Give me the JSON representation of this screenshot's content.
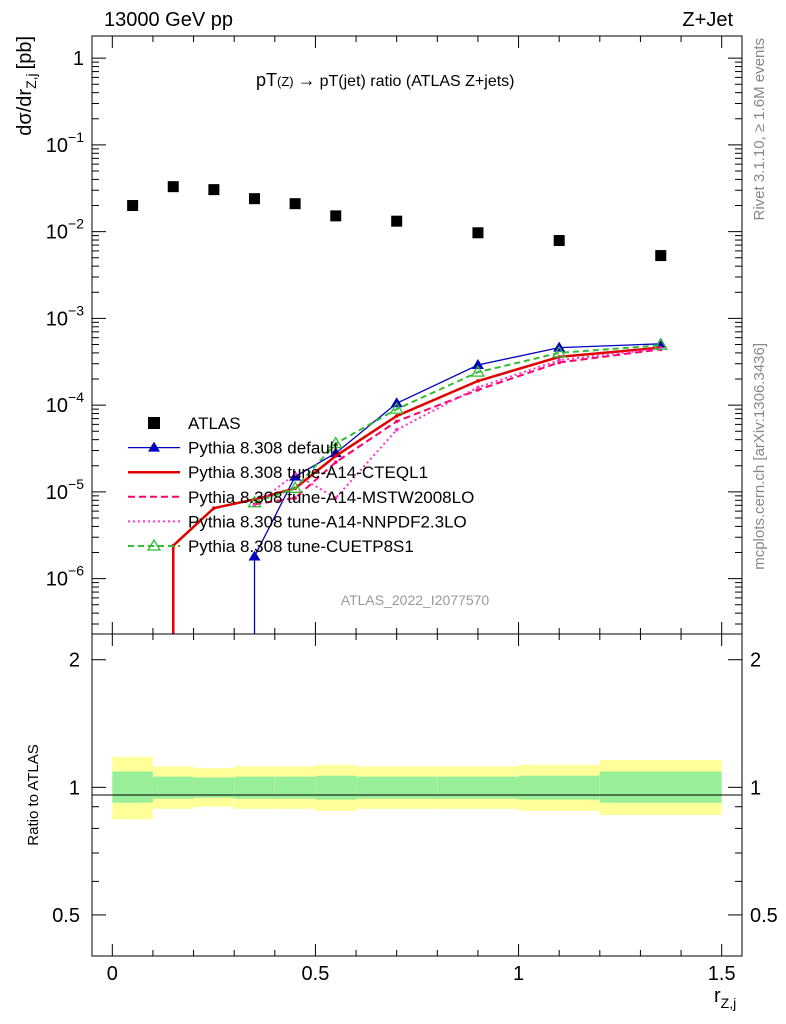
{
  "header": {
    "left": "13000 GeV pp",
    "right": "Z+Jet"
  },
  "side_labels": {
    "rivet": "Rivet 3.1.10, ≥ 1.6M events",
    "mcplots": "mcplots.cern.ch [arXiv:1306.3436]"
  },
  "chart_data": [
    {
      "type": "scatter",
      "title_main": "pT",
      "title_sub": "(Z)",
      "title_arrow": "→",
      "title_rest": "pT(jet) ratio (ATLAS Z+jets)",
      "ylabel_main": "dσ/dr",
      "ylabel_sub": "Z,j",
      "ylabel_unit": "[pb]",
      "watermark": "ATLAS_2022_I2077570",
      "yscale": "log",
      "xlim": [
        -0.05,
        1.55
      ],
      "ylim": [
        2.3e-07,
        1.8
      ],
      "y_tick_labels": [
        {
          "v": 1,
          "base": "1",
          "exp": ""
        },
        {
          "v": 0.1,
          "base": "10",
          "exp": "−1"
        },
        {
          "v": 0.01,
          "base": "10",
          "exp": "−2"
        },
        {
          "v": 0.001,
          "base": "10",
          "exp": "−3"
        },
        {
          "v": 0.0001,
          "base": "10",
          "exp": "−4"
        },
        {
          "v": 1e-05,
          "base": "10",
          "exp": "−5"
        },
        {
          "v": 1e-06,
          "base": "10",
          "exp": "−6"
        }
      ],
      "legend_position": "bottom-left",
      "series": [
        {
          "name": "ATLAS",
          "style": "data",
          "color": "#000000",
          "x": [
            0.05,
            0.15,
            0.25,
            0.35,
            0.45,
            0.55,
            0.7,
            0.9,
            1.1,
            1.35
          ],
          "y": [
            0.02,
            0.033,
            0.0305,
            0.024,
            0.021,
            0.0152,
            0.0132,
            0.0097,
            0.0079,
            0.0053
          ]
        },
        {
          "name": "Pythia 8.308 default",
          "style": "solid",
          "color": "#0000c0",
          "marker": "triangle-filled",
          "x": [
            0.35,
            0.45,
            0.55,
            0.7,
            0.9,
            1.1,
            1.35
          ],
          "y": [
            1.8e-06,
            1.5e-05,
            2.8e-05,
            0.000105,
            0.00029,
            0.00046,
            0.00051
          ]
        },
        {
          "name": "Pythia 8.308 tune-A14-CTEQL1",
          "style": "solid-thick",
          "color": "#e00000",
          "x": [
            0.15,
            0.25,
            0.35,
            0.45,
            0.55,
            0.7,
            0.9,
            1.1,
            1.35
          ],
          "y": [
            2.4e-06,
            6.5e-06,
            8.2e-06,
            1.1e-05,
            2.6e-05,
            7.5e-05,
            0.00019,
            0.00036,
            0.00046
          ]
        },
        {
          "name": "Pythia 8.308 tune-A14-MSTW2008LO",
          "style": "dashed",
          "color": "#ff0066",
          "x": [
            0.35,
            0.45,
            0.55,
            0.7,
            0.9,
            1.1,
            1.35
          ],
          "y": [
            7.2e-06,
            8.5e-06,
            2.2e-05,
            6.5e-05,
            0.00015,
            0.00031,
            0.00044
          ]
        },
        {
          "name": "Pythia 8.308 tune-A14-NNPDF2.3LO",
          "style": "dotted",
          "color": "#ff33cc",
          "x": [
            0.35,
            0.45,
            0.55,
            0.7,
            0.9,
            1.1,
            1.35
          ],
          "y": [
            7e-06,
            1.6e-05,
            8.5e-06,
            5.2e-05,
            0.00016,
            0.00033,
            0.00045
          ]
        },
        {
          "name": "Pythia 8.308 tune-CUETP8S1",
          "style": "dashed-open",
          "color": "#33bb33",
          "marker": "triangle-open",
          "x": [
            0.35,
            0.45,
            0.55,
            0.7,
            0.9,
            1.1,
            1.35
          ],
          "y": [
            7.5e-06,
            1.1e-05,
            3.6e-05,
            9e-05,
            0.00024,
            0.0004,
            0.00049
          ]
        }
      ]
    },
    {
      "type": "area",
      "ylabel": "Ratio to ATLAS",
      "xlabel_main": "r",
      "xlabel_sub": "Z,j",
      "xlim": [
        -0.05,
        1.55
      ],
      "ylim": [
        0.4,
        2.3
      ],
      "y_ticks": [
        "0.5",
        "1",
        "2"
      ],
      "x_ticks": [
        "0",
        "0.5",
        "1",
        "1.5"
      ],
      "bins": [
        {
          "lo": 0.0,
          "hi": 0.1,
          "inner": [
            0.92,
            1.09
          ],
          "outer": [
            0.84,
            1.18
          ]
        },
        {
          "lo": 0.1,
          "hi": 0.2,
          "inner": [
            0.94,
            1.06
          ],
          "outer": [
            0.89,
            1.12
          ]
        },
        {
          "lo": 0.2,
          "hi": 0.3,
          "inner": [
            0.945,
            1.055
          ],
          "outer": [
            0.9,
            1.11
          ]
        },
        {
          "lo": 0.3,
          "hi": 0.4,
          "inner": [
            0.94,
            1.06
          ],
          "outer": [
            0.89,
            1.12
          ]
        },
        {
          "lo": 0.4,
          "hi": 0.5,
          "inner": [
            0.94,
            1.06
          ],
          "outer": [
            0.89,
            1.12
          ]
        },
        {
          "lo": 0.5,
          "hi": 0.6,
          "inner": [
            0.935,
            1.065
          ],
          "outer": [
            0.88,
            1.13
          ]
        },
        {
          "lo": 0.6,
          "hi": 0.8,
          "inner": [
            0.94,
            1.06
          ],
          "outer": [
            0.89,
            1.12
          ]
        },
        {
          "lo": 0.8,
          "hi": 1.0,
          "inner": [
            0.94,
            1.06
          ],
          "outer": [
            0.89,
            1.12
          ]
        },
        {
          "lo": 1.0,
          "hi": 1.2,
          "inner": [
            0.935,
            1.065
          ],
          "outer": [
            0.88,
            1.13
          ]
        },
        {
          "lo": 1.2,
          "hi": 1.5,
          "inner": [
            0.92,
            1.09
          ],
          "outer": [
            0.86,
            1.16
          ]
        }
      ],
      "inner_color": "#99ee99",
      "outer_color": "#ffff99"
    }
  ]
}
